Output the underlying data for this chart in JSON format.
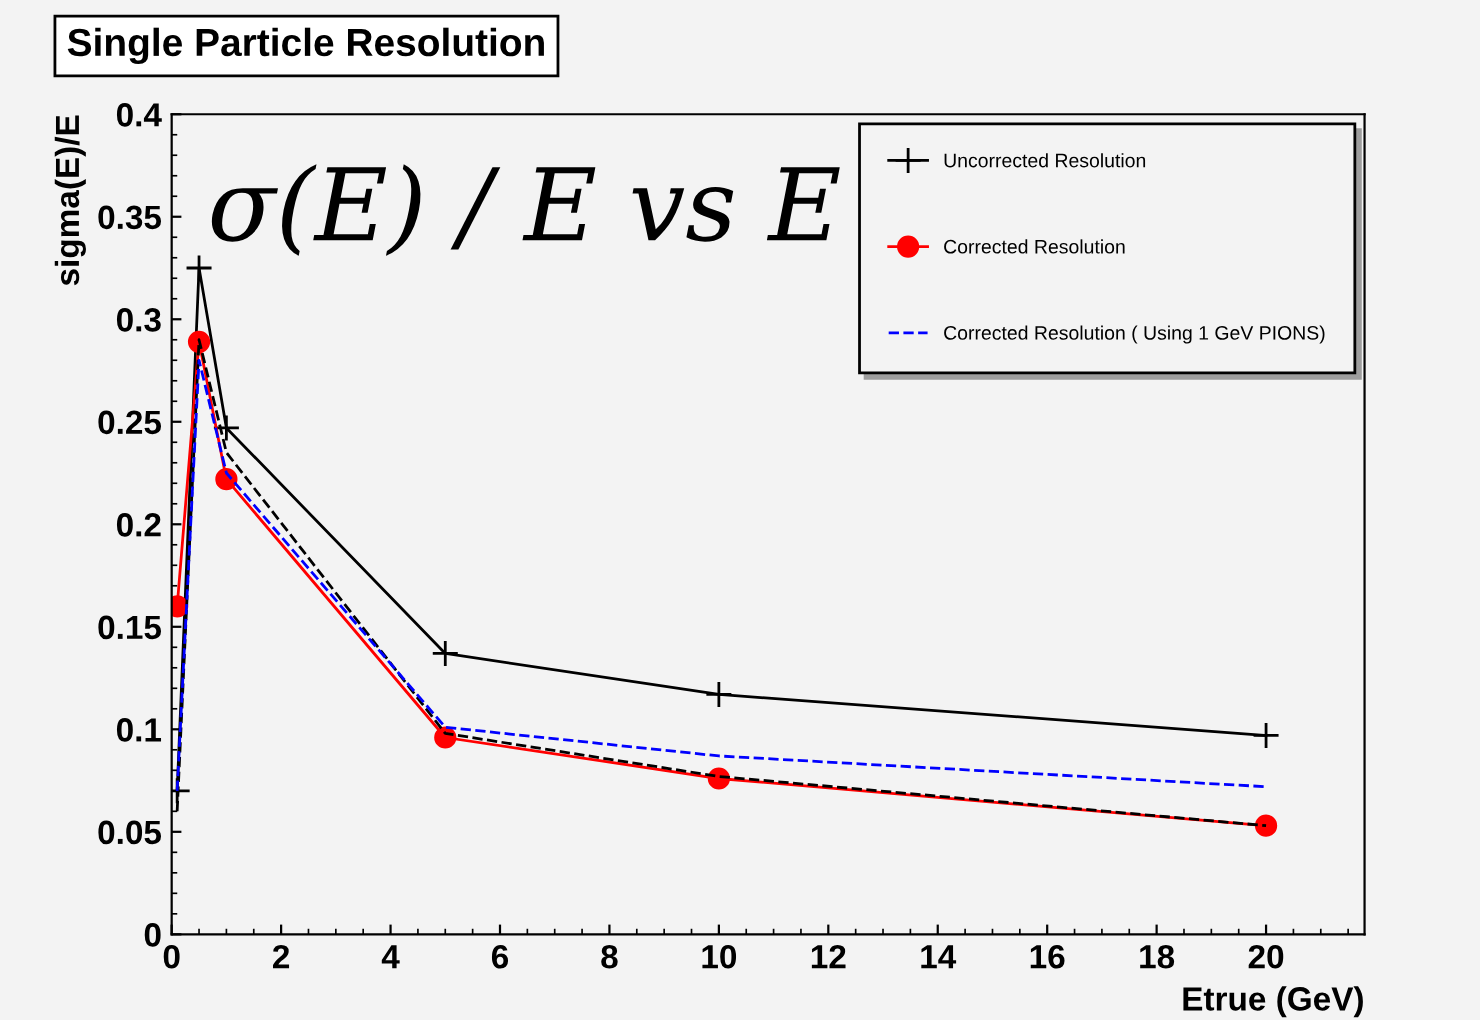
{
  "chart_data": {
    "type": "line",
    "title": "Single Particle Resolution",
    "xlabel": "Etrue (GeV)",
    "ylabel": "sigma(E)/E",
    "annotations": [
      "σ(E) / E vs E"
    ],
    "series": [
      {
        "name": "Uncorrected Resolution",
        "color": "#000000",
        "marker": "cross",
        "line_style": "solid",
        "x": [
          0.1,
          0.5,
          1,
          5,
          10,
          20
        ],
        "values": [
          0.07,
          0.325,
          0.247,
          0.137,
          0.117,
          0.097
        ]
      },
      {
        "name": "Corrected Resolution",
        "color": "#ff0000",
        "marker": "circle",
        "line_style": "solid",
        "x": [
          0.1,
          0.5,
          1,
          5,
          10,
          20
        ],
        "values": [
          0.16,
          0.289,
          0.222,
          0.096,
          0.076,
          0.053
        ]
      },
      {
        "color": "#000000",
        "marker": "none",
        "line_style": "dashed",
        "x": [
          0.1,
          0.5,
          1,
          5,
          10,
          20
        ],
        "values": [
          0.06,
          0.29,
          0.235,
          0.098,
          0.077,
          0.053
        ]
      },
      {
        "name": "Corrected Resolution ( Using 1 GeV PIONS)",
        "color": "#0000ff",
        "marker": "none",
        "line_style": "dashed",
        "x": [
          0.1,
          0.5,
          1,
          5,
          10,
          20
        ],
        "values": [
          0.07,
          0.28,
          0.225,
          0.101,
          0.087,
          0.072
        ]
      }
    ],
    "xlim": [
      0,
      21.8
    ],
    "xticks": [
      0,
      2,
      4,
      6,
      8,
      10,
      12,
      14,
      16,
      18,
      20
    ],
    "ylim": [
      0,
      0.4
    ],
    "yticks": [
      0,
      0.05,
      0.1,
      0.15,
      0.2,
      0.25,
      0.3,
      0.35,
      0.4
    ],
    "grid": false,
    "legend": "top right"
  }
}
